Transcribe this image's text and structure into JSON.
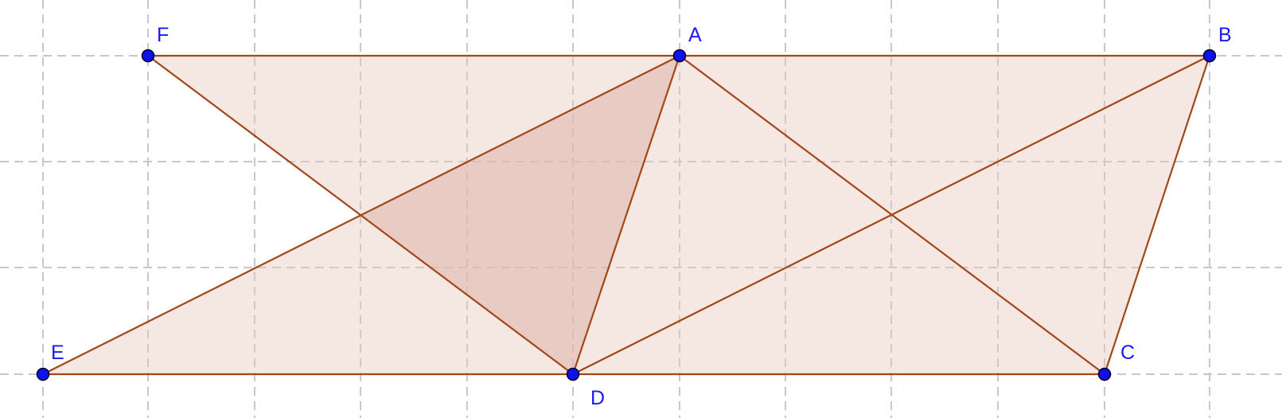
{
  "points": [
    {
      "id": "F",
      "label": "F"
    },
    {
      "id": "A",
      "label": "A"
    },
    {
      "id": "B",
      "label": "B"
    },
    {
      "id": "E",
      "label": "E"
    },
    {
      "id": "D",
      "label": "D"
    },
    {
      "id": "C",
      "label": "C"
    }
  ],
  "colors": {
    "segment": "#a0481a",
    "fill": "#e8c6bb",
    "point": "#1010e8",
    "label": "#1a1aee",
    "grid": "#c8c8c8"
  }
}
